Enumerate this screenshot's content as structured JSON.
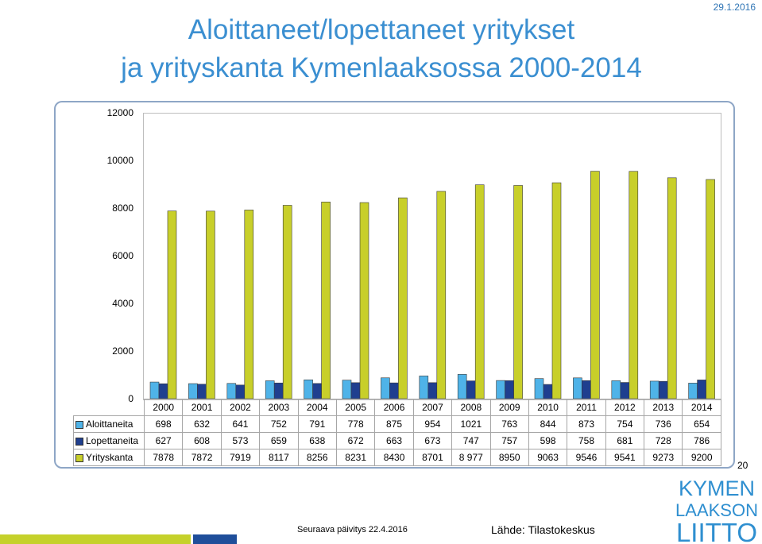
{
  "header": {
    "title_line1": "Aloittaneet/lopettaneet yritykset",
    "title_line2": "ja yrityskanta Kymenlaaksossa 2000-2014",
    "date": "29.1.2016"
  },
  "footer": {
    "page_number": "20",
    "next_update": "Seuraava päivitys 22.4.2016",
    "source": "Lähde: Tilastokeskus",
    "logo": {
      "line1": "KYMEN",
      "line2": "LAAKSON",
      "line3": "LIITTO"
    }
  },
  "colors": {
    "title": "#3b8fd1",
    "aloittaneita": "#4fb3e8",
    "lopettaneita": "#1f3f8f",
    "yrityskanta": "#c8cf2a",
    "logo": "#2f8fd0"
  },
  "chart_data": {
    "type": "bar",
    "title": "",
    "xlabel": "",
    "ylabel": "",
    "ylim": [
      0,
      12000
    ],
    "yticks": [
      "0",
      "2000",
      "4000",
      "6000",
      "8000",
      "10000",
      "12000"
    ],
    "grid": false,
    "legend": "data table",
    "categories": [
      "2000",
      "2001",
      "2002",
      "2003",
      "2004",
      "2005",
      "2006",
      "2007",
      "2008",
      "2009",
      "2010",
      "2011",
      "2012",
      "2013",
      "2014"
    ],
    "series": [
      {
        "name": "Aloittaneita",
        "values": [
          698,
          632,
          641,
          752,
          791,
          778,
          875,
          954,
          1021,
          763,
          844,
          873,
          754,
          736,
          654
        ],
        "labels": [
          "698",
          "632",
          "641",
          "752",
          "791",
          "778",
          "875",
          "954",
          "1021",
          "763",
          "844",
          "873",
          "754",
          "736",
          "654"
        ]
      },
      {
        "name": "Lopettaneita",
        "values": [
          627,
          608,
          573,
          659,
          638,
          672,
          663,
          673,
          747,
          757,
          598,
          758,
          681,
          728,
          786
        ],
        "labels": [
          "627",
          "608",
          "573",
          "659",
          "638",
          "672",
          "663",
          "673",
          "747",
          "757",
          "598",
          "758",
          "681",
          "728",
          "786"
        ]
      },
      {
        "name": "Yrityskanta",
        "values": [
          7878,
          7872,
          7919,
          8117,
          8256,
          8231,
          8430,
          8701,
          8977,
          8950,
          9063,
          9546,
          9541,
          9273,
          9200
        ],
        "labels": [
          "7878",
          "7872",
          "7919",
          "8117",
          "8256",
          "8231",
          "8430",
          "8701",
          "8 977",
          "8950",
          "9063",
          "9546",
          "9541",
          "9273",
          "9200"
        ]
      }
    ]
  }
}
